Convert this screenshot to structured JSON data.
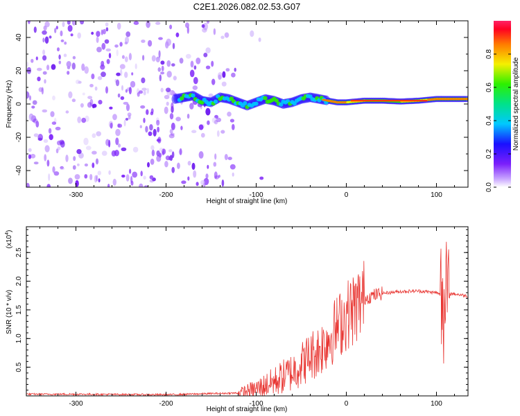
{
  "title": "C2E1.2026.082.02.53.G07",
  "chart_data": [
    {
      "type": "heatmap",
      "xlabel": "Height of straight line (km)",
      "ylabel": "Frequency (Hz)",
      "xlim": [
        -355,
        135
      ],
      "ylim": [
        -50,
        50
      ],
      "xticks": [
        -300,
        -200,
        -100,
        0,
        100
      ],
      "yticks": [
        -40,
        -20,
        0,
        20,
        40
      ],
      "track": {
        "x": [
          -190,
          -180,
          -170,
          -160,
          -150,
          -140,
          -130,
          -120,
          -110,
          -100,
          -90,
          -80,
          -70,
          -60,
          -50,
          -40,
          -30,
          -20,
          -10,
          0,
          20,
          40,
          60,
          80,
          100,
          120,
          135
        ],
        "y": [
          3,
          4,
          5,
          2,
          1,
          4,
          3,
          1,
          -1,
          1,
          3,
          2,
          0,
          1,
          3,
          4,
          3,
          2,
          1,
          1,
          2,
          2,
          1.5,
          2,
          3,
          3,
          3
        ]
      },
      "colorbar": {
        "label": "Normalized spectral amplitude",
        "range": [
          0,
          1
        ],
        "ticks": [
          "0.0",
          "0.2",
          "0.4",
          "0.6",
          "0.8"
        ]
      }
    },
    {
      "type": "line",
      "xlabel": "Height of straight line (km)",
      "ylabel": "SNR (10 * v/v)",
      "scale_label": "(x10",
      "scale_exp": "4",
      "xlim": [
        -355,
        135
      ],
      "ylim": [
        0,
        2.95
      ],
      "xticks": [
        -300,
        -200,
        -100,
        0,
        100
      ],
      "yticks": [
        "0.5",
        "1.0",
        "1.5",
        "2.0",
        "2.5"
      ],
      "color": "#e8332f",
      "series": [
        {
          "name": "SNR",
          "x": [
            -355,
            -300,
            -200,
            -150,
            -120,
            -100,
            -80,
            -60,
            -50,
            -40,
            -30,
            -20,
            -10,
            0,
            10,
            20,
            30,
            40,
            60,
            80,
            100,
            105,
            108,
            110,
            112,
            115,
            120,
            135
          ],
          "y": [
            0.03,
            0.03,
            0.02,
            0.04,
            0.05,
            0.12,
            0.25,
            0.42,
            0.55,
            0.7,
            0.8,
            1.0,
            1.2,
            1.4,
            1.55,
            1.7,
            1.75,
            1.79,
            1.82,
            1.83,
            1.8,
            1.75,
            1.6,
            2.4,
            1.5,
            1.78,
            1.78,
            1.74
          ]
        }
      ]
    }
  ]
}
